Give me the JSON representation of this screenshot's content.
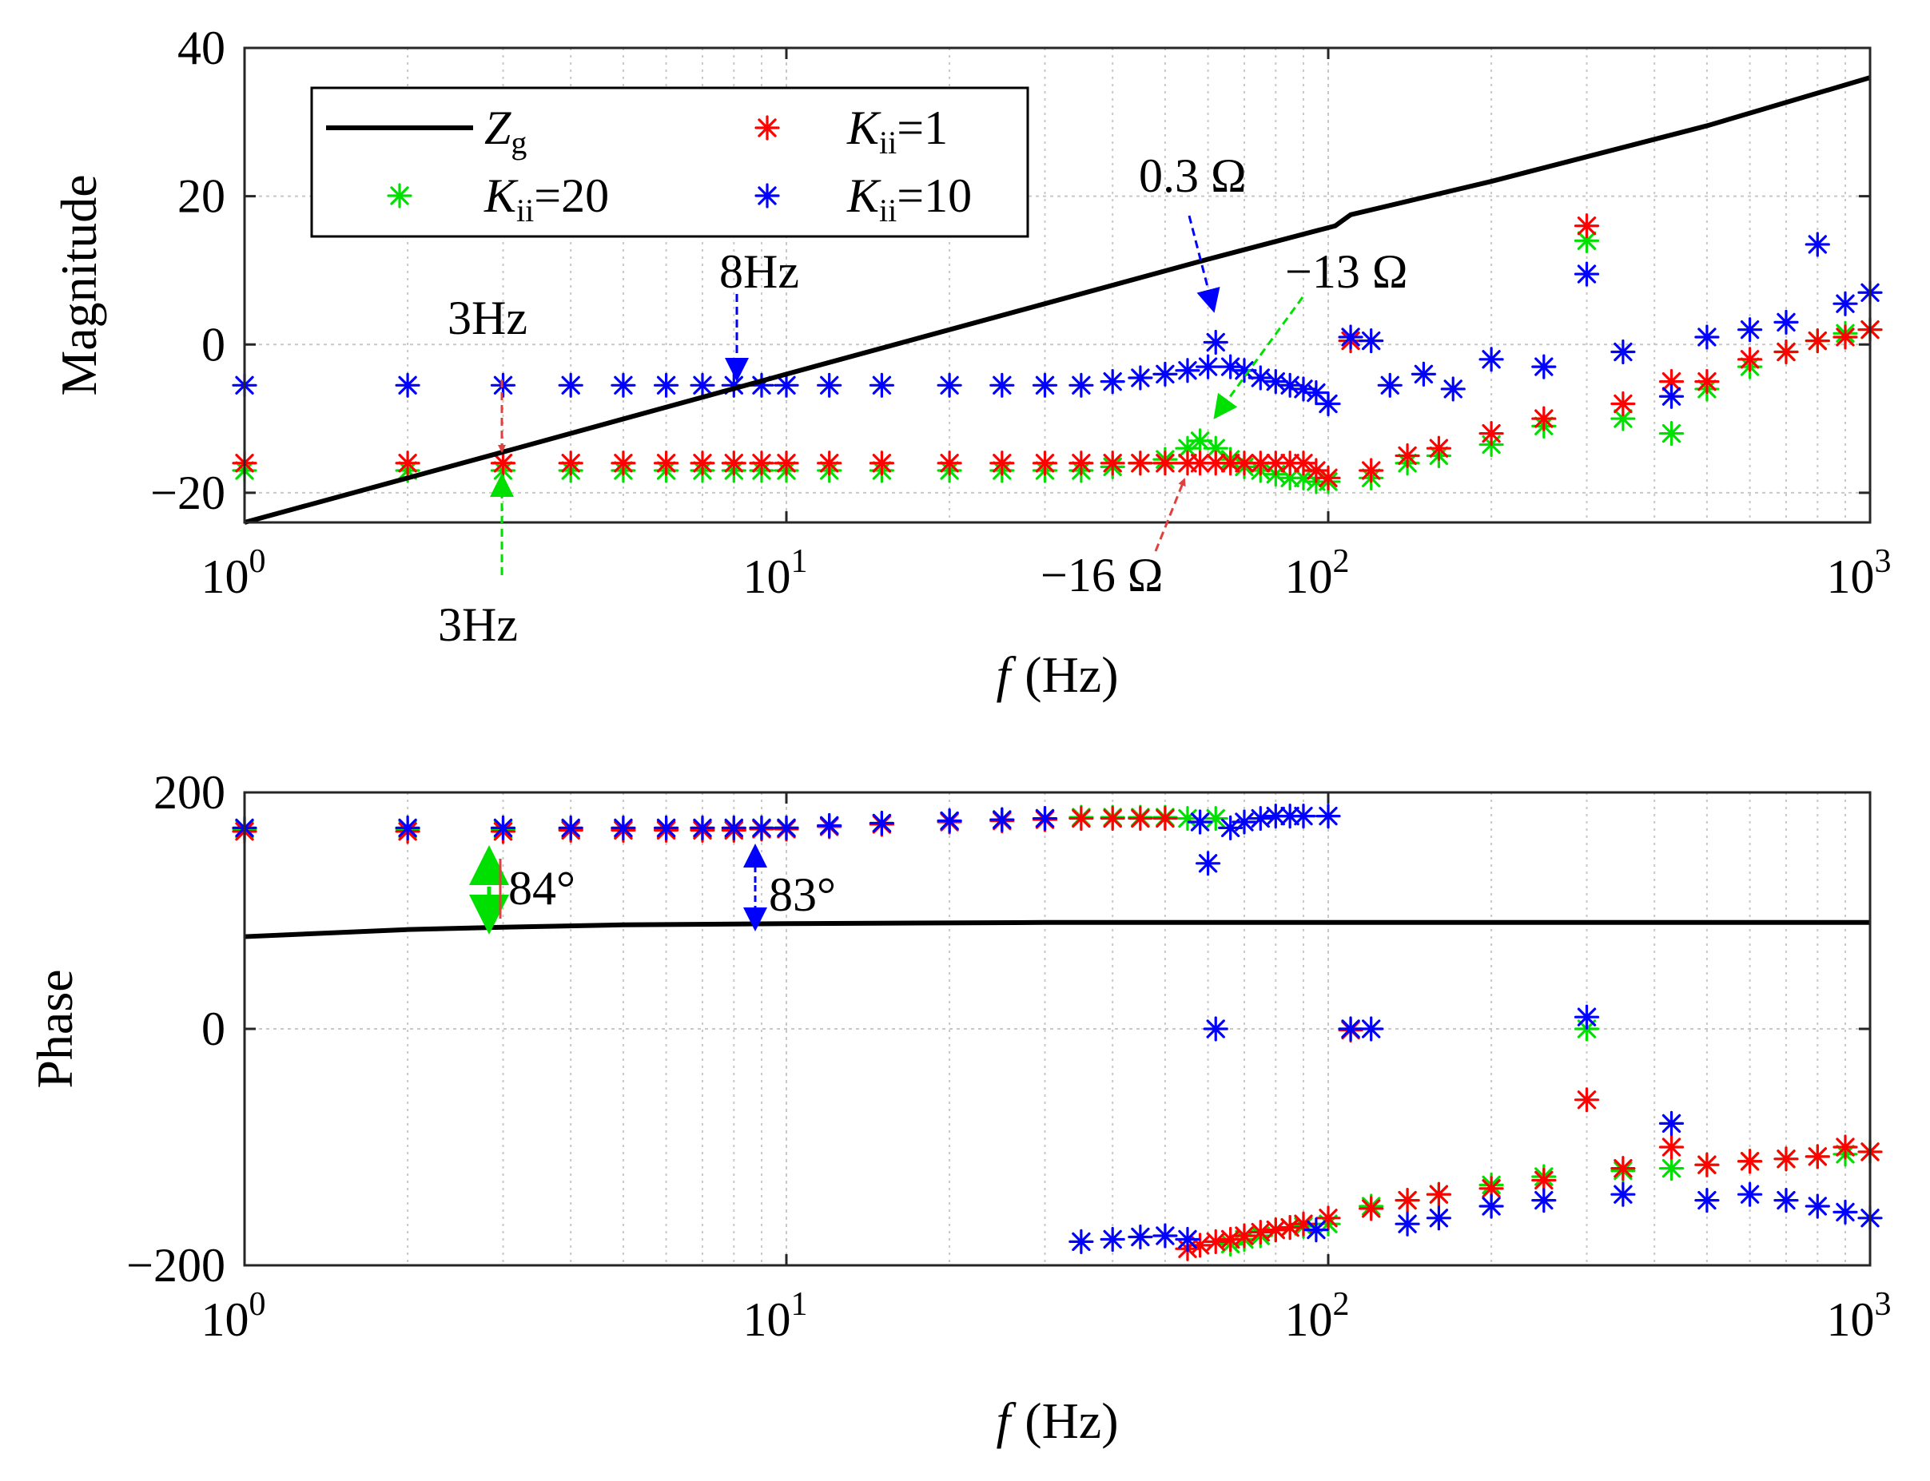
{
  "chart_data": [
    {
      "type": "scatter",
      "panel": "magnitude",
      "xscale": "log",
      "xlim": [
        1,
        1000
      ],
      "ylim": [
        -24,
        40
      ],
      "xlabel": "f  (Hz)",
      "ylabel": "Magnitude",
      "grid": true,
      "legend_position": "top-left",
      "xticks": [
        {
          "base": "10",
          "exp": "0",
          "v": 1
        },
        {
          "base": "10",
          "exp": "1",
          "v": 10
        },
        {
          "base": "10",
          "exp": "2",
          "v": 100
        },
        {
          "base": "10",
          "exp": "3",
          "v": 1000
        }
      ],
      "yticks": [
        {
          "label": "40",
          "v": 40
        },
        {
          "label": "20",
          "v": 20
        },
        {
          "label": "0",
          "v": 0
        },
        {
          "label": "−20",
          "v": -20
        }
      ],
      "legend": [
        {
          "sym": "Z",
          "sub": "g",
          "rest": "",
          "kind": "line",
          "color": "#000000"
        },
        {
          "sym": "K",
          "sub": "ii",
          "rest": "=20",
          "kind": "marker",
          "color": "#00e000"
        },
        {
          "sym": "K",
          "sub": "ii",
          "rest": "=1",
          "kind": "marker",
          "color": "#ff0000"
        },
        {
          "sym": "K",
          "sub": "ii",
          "rest": "=10",
          "kind": "marker",
          "color": "#0000ff"
        }
      ],
      "series": [
        {
          "name": "Zg",
          "kind": "line",
          "color": "#000000",
          "x": [
            1,
            3,
            10,
            30,
            60,
            103,
            110,
            200,
            500,
            1000
          ],
          "y": [
            -24,
            -14.5,
            -4,
            5.5,
            11.5,
            16,
            17.5,
            22,
            29.5,
            36
          ]
        },
        {
          "name": "Kii=20",
          "kind": "marker",
          "color": "#00e000",
          "x": [
            1,
            2,
            3,
            4,
            5,
            6,
            7,
            8,
            9,
            10,
            12,
            15,
            20,
            25,
            30,
            35,
            40,
            45,
            50,
            55,
            58,
            62,
            66,
            70,
            75,
            80,
            85,
            90,
            95,
            100,
            120,
            140,
            160,
            200,
            250,
            300,
            350,
            430,
            500,
            600,
            700,
            800,
            900,
            1000
          ],
          "y": [
            -17,
            -17,
            -17,
            -17,
            -17,
            -17,
            -17,
            -17,
            -17,
            -17,
            -17,
            -17,
            -17,
            -17,
            -17,
            -17,
            -16.5,
            -16,
            -15.5,
            -14,
            -13,
            -14,
            -15.5,
            -16.5,
            -17,
            -17.5,
            -18,
            -18,
            -18.5,
            -18.5,
            -18,
            -16,
            -15,
            -13.5,
            -11,
            14,
            -10,
            -12,
            -6,
            -3,
            -1,
            0.5,
            1.5,
            2
          ]
        },
        {
          "name": "Kii=1",
          "kind": "marker",
          "color": "#ff0000",
          "x": [
            1,
            2,
            3,
            4,
            5,
            6,
            7,
            8,
            9,
            10,
            12,
            15,
            20,
            25,
            30,
            35,
            40,
            45,
            50,
            55,
            58,
            62,
            66,
            70,
            75,
            80,
            85,
            90,
            95,
            100,
            110,
            120,
            140,
            160,
            200,
            250,
            300,
            350,
            430,
            500,
            600,
            700,
            800,
            900,
            1000
          ],
          "y": [
            -16,
            -16,
            -16,
            -16,
            -16,
            -16,
            -16,
            -16,
            -16,
            -16,
            -16,
            -16,
            -16,
            -16,
            -16,
            -16,
            -16,
            -16,
            -16,
            -16,
            -16,
            -16,
            -16,
            -16,
            -16,
            -16,
            -16,
            -16,
            -17,
            -18,
            0.5,
            -17,
            -15,
            -14,
            -12,
            -10,
            16,
            -8,
            -5,
            -5,
            -2,
            -1,
            0.5,
            1,
            2
          ]
        },
        {
          "name": "Kii=10",
          "kind": "marker",
          "color": "#0000ff",
          "x": [
            1,
            2,
            3,
            4,
            5,
            6,
            7,
            8,
            9,
            10,
            12,
            15,
            20,
            25,
            30,
            35,
            40,
            45,
            50,
            55,
            60,
            62,
            66,
            70,
            75,
            80,
            85,
            90,
            95,
            100,
            110,
            120,
            130,
            150,
            170,
            200,
            250,
            300,
            350,
            430,
            500,
            600,
            700,
            800,
            900,
            1000
          ],
          "y": [
            -5.5,
            -5.5,
            -5.5,
            -5.5,
            -5.5,
            -5.5,
            -5.5,
            -5.5,
            -5.5,
            -5.5,
            -5.5,
            -5.5,
            -5.5,
            -5.5,
            -5.5,
            -5.5,
            -5,
            -4.5,
            -4,
            -3.5,
            -3,
            0.3,
            -3,
            -3.5,
            -4.5,
            -5,
            -5.5,
            -6,
            -6.5,
            -8,
            1,
            0.5,
            -5.5,
            -4,
            -6,
            -2,
            -3,
            9.5,
            -1,
            -7,
            1,
            2,
            3,
            13.5,
            5.5,
            7
          ]
        }
      ],
      "annotations": [
        {
          "text": "3Hz",
          "color": "#ff0000"
        },
        {
          "text": "3Hz",
          "color": "#00e000"
        },
        {
          "text": "8Hz",
          "color": "#0000ff"
        },
        {
          "text": "0.3 Ω",
          "color": "#0000ff"
        },
        {
          "text": "−13 Ω",
          "color": "#00e000"
        },
        {
          "text": "−16 Ω",
          "color": "#ff0000"
        }
      ]
    },
    {
      "type": "scatter",
      "panel": "phase",
      "xscale": "log",
      "xlim": [
        1,
        1000
      ],
      "ylim": [
        -200,
        200
      ],
      "xlabel": "f  (Hz)",
      "ylabel": "Phase",
      "grid": true,
      "xticks": [
        {
          "base": "10",
          "exp": "0",
          "v": 1
        },
        {
          "base": "10",
          "exp": "1",
          "v": 10
        },
        {
          "base": "10",
          "exp": "2",
          "v": 100
        },
        {
          "base": "10",
          "exp": "3",
          "v": 1000
        }
      ],
      "yticks": [
        {
          "label": "200",
          "v": 200
        },
        {
          "label": "0",
          "v": 0
        },
        {
          "label": "−200",
          "v": -200
        }
      ],
      "series": [
        {
          "name": "Zg",
          "kind": "line",
          "color": "#000000",
          "x": [
            1,
            2,
            3,
            5,
            10,
            30,
            100,
            1000
          ],
          "y": [
            78,
            84,
            86,
            88,
            89,
            90,
            90,
            90
          ]
        },
        {
          "name": "Kii=20",
          "kind": "marker",
          "color": "#00e000",
          "x": [
            1,
            2,
            3,
            4,
            5,
            6,
            7,
            8,
            9,
            10,
            12,
            15,
            20,
            25,
            30,
            35,
            40,
            45,
            50,
            55,
            58,
            62,
            66,
            70,
            75,
            80,
            85,
            90,
            100,
            110,
            120,
            140,
            160,
            200,
            250,
            300,
            350,
            430,
            500,
            600,
            700,
            800,
            900,
            1000
          ],
          "y": [
            169,
            169,
            169,
            169,
            169,
            169,
            169,
            169,
            170,
            170,
            172,
            174,
            176,
            177,
            178,
            179,
            179,
            179,
            179,
            178,
            175,
            178,
            -182,
            -178,
            -175,
            -170,
            -168,
            -167,
            -165,
            0,
            -150,
            -145,
            -140,
            -132,
            -125,
            0,
            -120,
            -118,
            -115,
            -112,
            -110,
            -108,
            -106,
            -104
          ]
        },
        {
          "name": "Kii=1",
          "kind": "marker",
          "color": "#ff0000",
          "x": [
            1,
            2,
            3,
            4,
            5,
            6,
            7,
            8,
            9,
            10,
            12,
            15,
            20,
            25,
            30,
            35,
            40,
            45,
            50,
            55,
            58,
            62,
            66,
            70,
            75,
            80,
            85,
            90,
            100,
            110,
            120,
            140,
            160,
            200,
            250,
            300,
            350,
            430,
            500,
            600,
            700,
            800,
            900,
            1000
          ],
          "y": [
            167,
            167,
            167,
            168,
            168,
            168,
            168,
            168,
            169,
            169,
            171,
            173,
            175,
            176,
            177,
            178,
            178,
            178,
            178,
            -186,
            -183,
            -180,
            -178,
            -175,
            -172,
            -170,
            -168,
            -165,
            -160,
            -1,
            -152,
            -145,
            -140,
            -135,
            -128,
            -60,
            -118,
            -100,
            -115,
            -112,
            -110,
            -108,
            -100,
            -104
          ]
        },
        {
          "name": "Kii=10",
          "kind": "marker",
          "color": "#0000ff",
          "x": [
            1,
            2,
            3,
            4,
            5,
            6,
            7,
            8,
            9,
            10,
            12,
            15,
            20,
            25,
            30,
            35,
            40,
            45,
            50,
            55,
            58,
            60,
            62,
            66,
            70,
            75,
            80,
            85,
            90,
            95,
            100,
            110,
            120,
            140,
            160,
            200,
            250,
            300,
            350,
            430,
            500,
            600,
            700,
            800,
            900,
            1000
          ],
          "y": [
            170,
            170,
            170,
            170,
            170,
            170,
            170,
            170,
            170,
            170,
            172,
            174,
            176,
            177,
            178,
            -180,
            -178,
            -176,
            -175,
            -178,
            175,
            140,
            0,
            170,
            175,
            178,
            180,
            180,
            180,
            -170,
            180,
            0,
            0,
            -165,
            -160,
            -150,
            -145,
            10,
            -140,
            -80,
            -145,
            -140,
            -145,
            -150,
            -155,
            -160
          ]
        }
      ],
      "annotations": [
        {
          "text": "84°",
          "color": "#00e000"
        },
        {
          "text": "83°",
          "color": "#0000ff"
        }
      ]
    }
  ]
}
